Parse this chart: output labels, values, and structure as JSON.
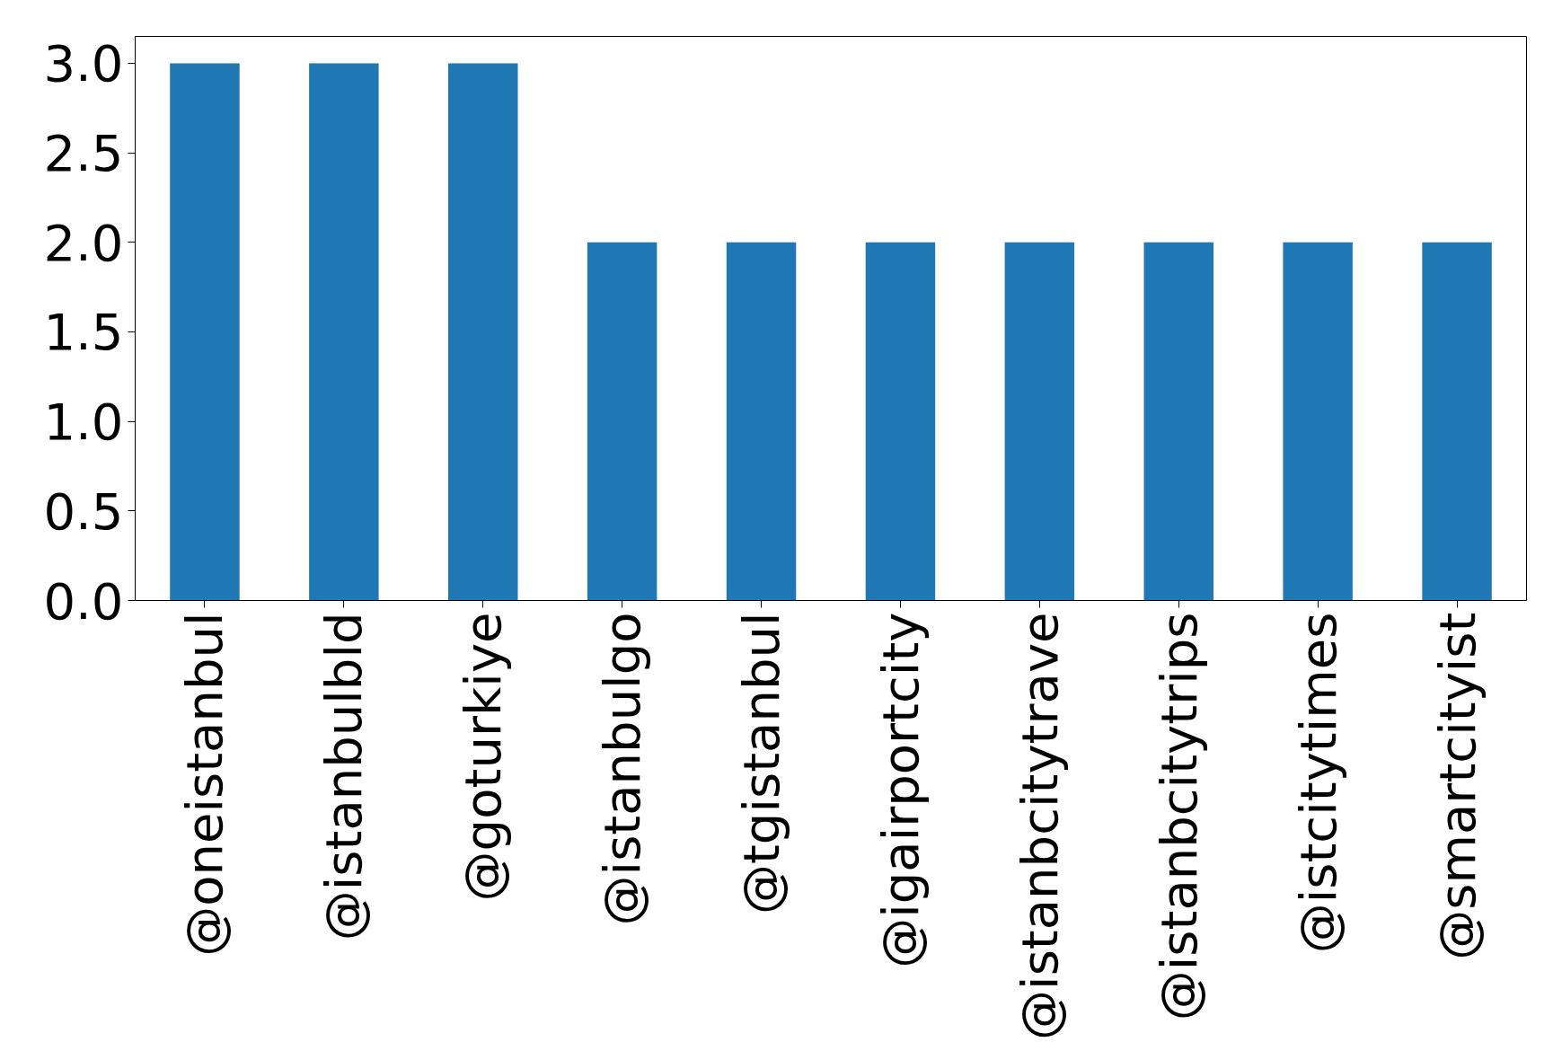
{
  "chart_data": {
    "type": "bar",
    "categories": [
      "@oneistanbul",
      "@istanbulbld",
      "@goturkiye",
      "@istanbulgo",
      "@tgistanbul",
      "@igairportcity",
      "@istanbcitytrave",
      "@istanbcitytrips",
      "@istcitytimes",
      "@smartcityist"
    ],
    "values": [
      3,
      3,
      3,
      2,
      2,
      2,
      2,
      2,
      2,
      2
    ],
    "color": "#1f77b4",
    "ylim": [
      0,
      3.15
    ],
    "yticks": [
      {
        "value": 0,
        "label": "0.0"
      },
      {
        "value": 0.5,
        "label": "0.5"
      },
      {
        "value": 1,
        "label": "1.0"
      },
      {
        "value": 1.5,
        "label": "1.5"
      },
      {
        "value": 2,
        "label": "2.0"
      },
      {
        "value": 2.5,
        "label": "2.5"
      },
      {
        "value": 3,
        "label": "3.0"
      }
    ],
    "grid": false
  }
}
